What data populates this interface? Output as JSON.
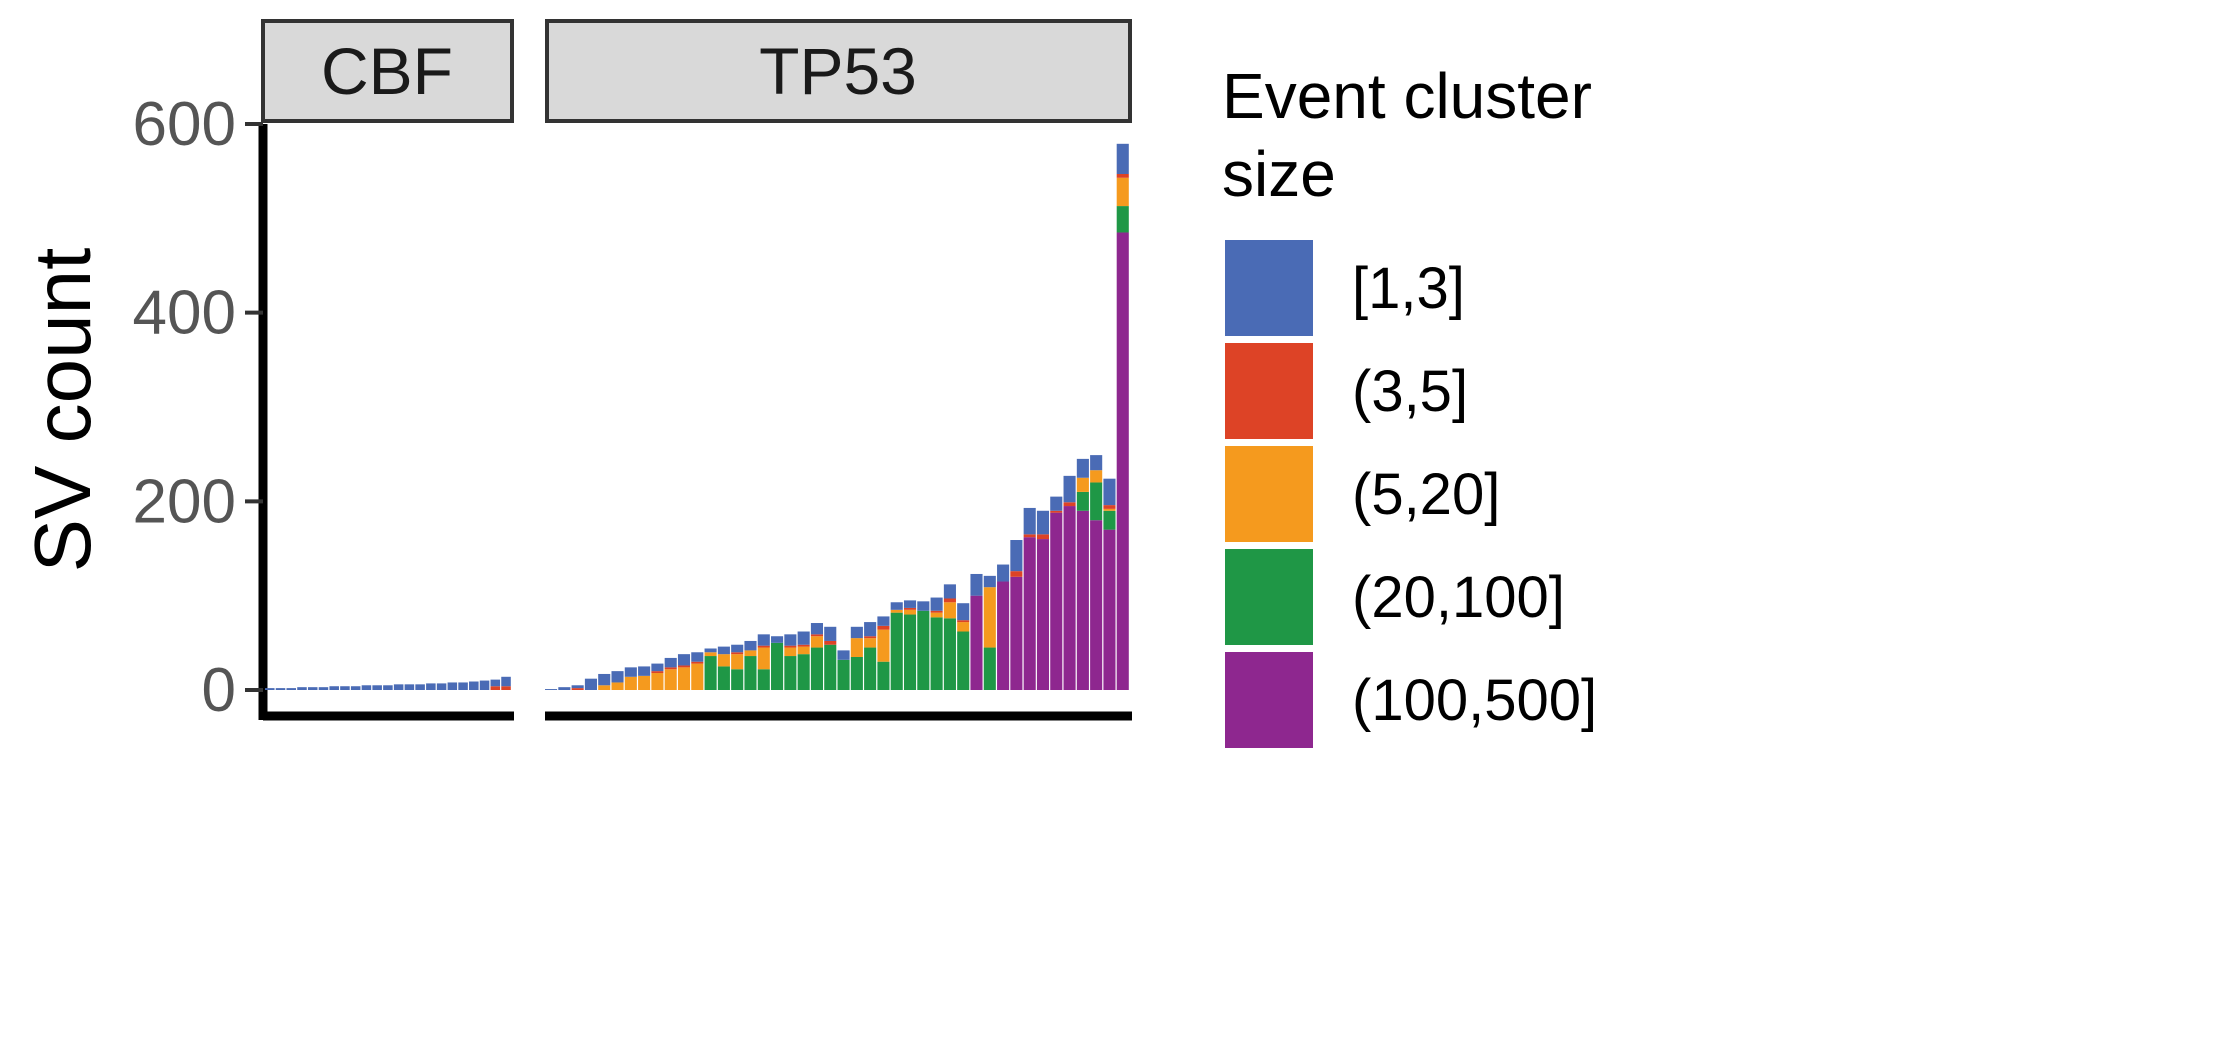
{
  "chart_data": {
    "type": "bar",
    "stacked": true,
    "ylabel": "SV count",
    "ylim": [
      0,
      600
    ],
    "yticks": [
      0,
      200,
      400,
      600
    ],
    "grid": false,
    "legend": {
      "title": "Event cluster size",
      "title_lines": [
        "Event cluster",
        "size"
      ],
      "position": "right",
      "entries": [
        {
          "label": "[1,3]",
          "color": "#4a6bb5"
        },
        {
          "label": "(3,5]",
          "color": "#dd4326"
        },
        {
          "label": "(5,20]",
          "color": "#f59a1e"
        },
        {
          "label": "(20,100]",
          "color": "#1f9746"
        },
        {
          "label": "(100,500]",
          "color": "#8e278f"
        }
      ]
    },
    "series_names": [
      "[1,3]",
      "(3,5]",
      "(5,20]",
      "(20,100]",
      "(100,500]"
    ],
    "panels": [
      {
        "label": "CBF",
        "bars": [
          [
            2,
            0,
            0,
            0,
            0
          ],
          [
            2,
            0,
            0,
            0,
            0
          ],
          [
            2,
            0,
            0,
            0,
            0
          ],
          [
            3,
            0,
            0,
            0,
            0
          ],
          [
            3,
            0,
            0,
            0,
            0
          ],
          [
            3,
            0,
            0,
            0,
            0
          ],
          [
            4,
            0,
            0,
            0,
            0
          ],
          [
            4,
            0,
            0,
            0,
            0
          ],
          [
            4,
            0,
            0,
            0,
            0
          ],
          [
            5,
            0,
            0,
            0,
            0
          ],
          [
            5,
            0,
            0,
            0,
            0
          ],
          [
            5,
            0,
            0,
            0,
            0
          ],
          [
            6,
            0,
            0,
            0,
            0
          ],
          [
            6,
            0,
            0,
            0,
            0
          ],
          [
            6,
            0,
            0,
            0,
            0
          ],
          [
            7,
            0,
            0,
            0,
            0
          ],
          [
            7,
            0,
            0,
            0,
            0
          ],
          [
            8,
            0,
            0,
            0,
            0
          ],
          [
            8,
            0,
            0,
            0,
            0
          ],
          [
            9,
            0,
            0,
            0,
            0
          ],
          [
            10,
            0,
            0,
            0,
            0
          ],
          [
            7,
            4,
            0,
            0,
            0
          ],
          [
            10,
            4,
            0,
            0,
            0
          ]
        ]
      },
      {
        "label": "TP53",
        "bars": [
          [
            1,
            0,
            0,
            0,
            0
          ],
          [
            3,
            0,
            0,
            0,
            0
          ],
          [
            3,
            2,
            0,
            0,
            0
          ],
          [
            12,
            0,
            0,
            0,
            0
          ],
          [
            12,
            0,
            5,
            0,
            0
          ],
          [
            12,
            0,
            8,
            0,
            0
          ],
          [
            10,
            0,
            14,
            0,
            0
          ],
          [
            10,
            0,
            15,
            0,
            0
          ],
          [
            8,
            2,
            18,
            0,
            0
          ],
          [
            10,
            2,
            22,
            0,
            0
          ],
          [
            12,
            2,
            24,
            0,
            0
          ],
          [
            10,
            2,
            28,
            0,
            0
          ],
          [
            4,
            0,
            4,
            36,
            0
          ],
          [
            8,
            0,
            13,
            25,
            0
          ],
          [
            8,
            2,
            16,
            22,
            0
          ],
          [
            10,
            0,
            6,
            36,
            0
          ],
          [
            12,
            2,
            23,
            22,
            0
          ],
          [
            7,
            0,
            0,
            50,
            0
          ],
          [
            12,
            2,
            9,
            36,
            0
          ],
          [
            14,
            2,
            8,
            38,
            0
          ],
          [
            12,
            2,
            12,
            45,
            0
          ],
          [
            15,
            4,
            0,
            48,
            0
          ],
          [
            10,
            0,
            0,
            32,
            0
          ],
          [
            12,
            0,
            20,
            35,
            0
          ],
          [
            15,
            2,
            10,
            45,
            0
          ],
          [
            10,
            4,
            34,
            30,
            0
          ],
          [
            8,
            0,
            3,
            82,
            0
          ],
          [
            8,
            2,
            5,
            80,
            0
          ],
          [
            10,
            0,
            0,
            84,
            0
          ],
          [
            14,
            2,
            5,
            77,
            0
          ],
          [
            15,
            4,
            17,
            76,
            0
          ],
          [
            18,
            2,
            10,
            62,
            0
          ],
          [
            23,
            0,
            0,
            0,
            100
          ],
          [
            12,
            0,
            64,
            45,
            0
          ],
          [
            18,
            0,
            0,
            0,
            115
          ],
          [
            33,
            6,
            0,
            0,
            120
          ],
          [
            28,
            3,
            0,
            0,
            162
          ],
          [
            25,
            5,
            0,
            0,
            160
          ],
          [
            15,
            2,
            0,
            0,
            188
          ],
          [
            28,
            4,
            0,
            0,
            195
          ],
          [
            20,
            0,
            15,
            20,
            190
          ],
          [
            16,
            0,
            13,
            40,
            180
          ],
          [
            28,
            4,
            2,
            20,
            170
          ],
          [
            32,
            4,
            30,
            28,
            485
          ]
        ]
      }
    ],
    "x_tick_labels": []
  }
}
